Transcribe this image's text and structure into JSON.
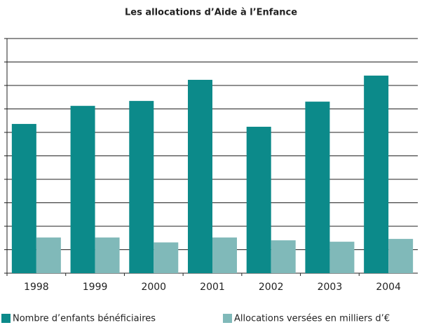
{
  "chart_data": {
    "type": "bar",
    "title": "Les allocations d’Aide à l’Enfance",
    "categories": [
      "1998",
      "1999",
      "2000",
      "2001",
      "2002",
      "2003",
      "2004"
    ],
    "series": [
      {
        "name": "Nombre d’enfants bénéficiaires",
        "color": "#0c8a8a",
        "values": [
          6.36,
          7.13,
          7.34,
          8.24,
          6.24,
          7.31,
          8.42
        ]
      },
      {
        "name": "Allocations versées en milliers d’€",
        "color": "#80b9b9",
        "values": [
          1.52,
          1.52,
          1.31,
          1.52,
          1.4,
          1.34,
          1.46
        ]
      }
    ],
    "ylim": [
      0,
      10
    ],
    "yticks": [
      0,
      1,
      2,
      3,
      4,
      5,
      6,
      7,
      8,
      9,
      10
    ],
    "grid": true
  }
}
